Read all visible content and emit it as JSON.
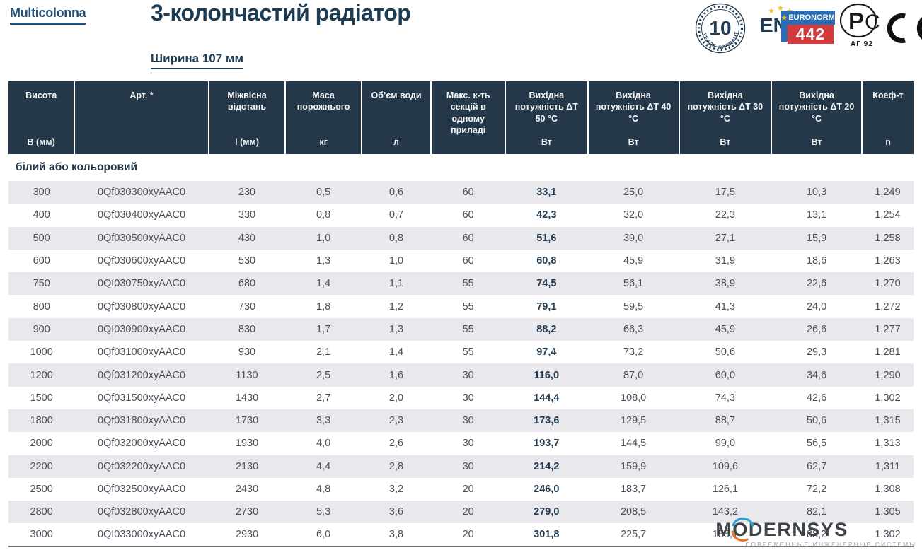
{
  "header": {
    "brand": "Multicolonna",
    "title": "3-колончастий радіатор",
    "subtitle": "Ширина 107 мм"
  },
  "badges": {
    "warranty_number": "10",
    "warranty_text": "YEARS WARRANTY",
    "en_label": "EN",
    "euronorm_label": "EURONORM",
    "euronorm_number": "442",
    "pct_p_letter": "Р",
    "pct_c_letter": "С",
    "pct_t_letter": "т",
    "pct_code": "АГ 92",
    "ce_label": "CE"
  },
  "table": {
    "columns": [
      {
        "label": "Висота",
        "unit": "В (мм)"
      },
      {
        "label": "Арт. *",
        "unit": ""
      },
      {
        "label": "Міжвісна відстань",
        "unit": "l (мм)"
      },
      {
        "label": "Маса порожнього",
        "unit": "кг"
      },
      {
        "label": "Об’єм води",
        "unit": "л"
      },
      {
        "label": "Макс. к-ть секцій в одному приладі",
        "unit": ""
      },
      {
        "label": "Вихідна потужність ΔT 50 °C",
        "unit": "Вт"
      },
      {
        "label": "Вихідна потужність ΔT 40 °C",
        "unit": "Вт"
      },
      {
        "label": "Вихідна потужність ΔT 30 °C",
        "unit": "Вт"
      },
      {
        "label": "Вихідна потужність ΔT 20 °C",
        "unit": "Вт"
      },
      {
        "label": "Коеф-т",
        "unit": "n"
      }
    ],
    "section_label": "білий або кольоровий",
    "rows": [
      [
        "300",
        "0Qf030300xyAAC0",
        "230",
        "0,5",
        "0,6",
        "60",
        "33,1",
        "25,0",
        "17,5",
        "10,3",
        "1,249"
      ],
      [
        "400",
        "0Qf030400xyAAC0",
        "330",
        "0,8",
        "0,7",
        "60",
        "42,3",
        "32,0",
        "22,3",
        "13,1",
        "1,254"
      ],
      [
        "500",
        "0Qf030500xyAAC0",
        "430",
        "1,0",
        "0,8",
        "60",
        "51,6",
        "39,0",
        "27,1",
        "15,9",
        "1,258"
      ],
      [
        "600",
        "0Qf030600xyAAC0",
        "530",
        "1,3",
        "1,0",
        "60",
        "60,8",
        "45,9",
        "31,9",
        "18,6",
        "1,263"
      ],
      [
        "750",
        "0Qf030750xyAAC0",
        "680",
        "1,4",
        "1,1",
        "55",
        "74,5",
        "56,1",
        "38,9",
        "22,6",
        "1,270"
      ],
      [
        "800",
        "0Qf030800xyAAC0",
        "730",
        "1,8",
        "1,2",
        "55",
        "79,1",
        "59,5",
        "41,3",
        "24,0",
        "1,272"
      ],
      [
        "900",
        "0Qf030900xyAAC0",
        "830",
        "1,7",
        "1,3",
        "55",
        "88,2",
        "66,3",
        "45,9",
        "26,6",
        "1,277"
      ],
      [
        "1000",
        "0Qf031000xyAAC0",
        "930",
        "2,1",
        "1,4",
        "55",
        "97,4",
        "73,2",
        "50,6",
        "29,3",
        "1,281"
      ],
      [
        "1200",
        "0Qf031200xyAAC0",
        "1130",
        "2,5",
        "1,6",
        "30",
        "116,0",
        "87,0",
        "60,0",
        "34,6",
        "1,290"
      ],
      [
        "1500",
        "0Qf031500xyAAC0",
        "1430",
        "2,7",
        "2,0",
        "30",
        "144,4",
        "108,0",
        "74,3",
        "42,6",
        "1,302"
      ],
      [
        "1800",
        "0Qf031800xyAAC0",
        "1730",
        "3,3",
        "2,3",
        "30",
        "173,6",
        "129,5",
        "88,7",
        "50,6",
        "1,315"
      ],
      [
        "2000",
        "0Qf032000xyAAC0",
        "1930",
        "4,0",
        "2,6",
        "30",
        "193,7",
        "144,5",
        "99,0",
        "56,5",
        "1,313"
      ],
      [
        "2200",
        "0Qf032200xyAAC0",
        "2130",
        "4,4",
        "2,8",
        "30",
        "214,2",
        "159,9",
        "109,6",
        "62,7",
        "1,311"
      ],
      [
        "2500",
        "0Qf032500xyAAC0",
        "2430",
        "4,8",
        "3,2",
        "20",
        "246,0",
        "183,7",
        "126,1",
        "72,2",
        "1,308"
      ],
      [
        "2800",
        "0Qf032800xyAAC0",
        "2730",
        "5,3",
        "3,6",
        "20",
        "279,0",
        "208,5",
        "143,2",
        "82,1",
        "1,305"
      ],
      [
        "3000",
        "0Qf033000xyAAC0",
        "2930",
        "6,0",
        "3,8",
        "20",
        "301,8",
        "225,7",
        "155,1",
        "88,2",
        "1,302"
      ]
    ]
  },
  "watermark": {
    "text": "MODERNSYS",
    "subtext": "СОВРЕМЕННЫЕ ИНЖЕНЕРНЫЕ СИСТЕМЫ"
  },
  "colors": {
    "header_navy": "#24384a",
    "title_navy": "#1d3d55",
    "brand_blue": "#235179",
    "row_alt_gray": "#e9e9ed",
    "euronorm_blue": "#2a6cb4",
    "euronorm_red": "#d23a3c",
    "star_gold": "#f0c419",
    "watermark_blue": "#2e9fd8",
    "watermark_orange": "#e8732a"
  }
}
